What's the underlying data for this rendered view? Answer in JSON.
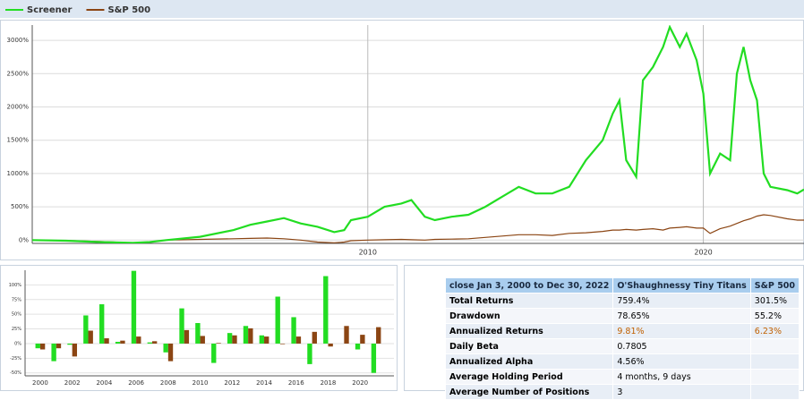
{
  "chart_data": [
    {
      "type": "line",
      "x": [
        2000,
        2001,
        2002,
        2003,
        2003.5,
        2004,
        2005,
        2006,
        2006.5,
        2007,
        2007.5,
        2008,
        2008.5,
        2009,
        2009.3,
        2009.5,
        2010,
        2010.5,
        2011,
        2011.3,
        2011.7,
        2012,
        2012.5,
        2013,
        2013.5,
        2014,
        2014.5,
        2015,
        2015.5,
        2016,
        2016.5,
        2017,
        2017.3,
        2017.5,
        2017.7,
        2018,
        2018.2,
        2018.5,
        2018.8,
        2019,
        2019.3,
        2019.5,
        2019.8,
        2020,
        2020.2,
        2020.5,
        2020.8,
        2021,
        2021.2,
        2021.4,
        2021.6,
        2021.8,
        2022,
        2022.5,
        2022.8,
        2023
      ],
      "series": [
        {
          "name": "Screener",
          "color": "#22dd22",
          "values": [
            0,
            -10,
            -30,
            -40,
            -30,
            0,
            50,
            150,
            230,
            280,
            330,
            250,
            200,
            120,
            150,
            300,
            350,
            500,
            550,
            600,
            350,
            300,
            350,
            380,
            500,
            650,
            800,
            700,
            700,
            800,
            1200,
            1500,
            1900,
            2100,
            1200,
            950,
            2400,
            2600,
            2900,
            3200,
            2900,
            3100,
            2700,
            2200,
            1000,
            1300,
            1200,
            2500,
            2900,
            2400,
            2100,
            1000,
            800,
            750,
            700,
            760
          ]
        },
        {
          "name": "S&P 500",
          "color": "#8b4513",
          "values": [
            0,
            -5,
            -20,
            -40,
            -30,
            0,
            10,
            20,
            25,
            30,
            20,
            0,
            -30,
            -40,
            -30,
            -10,
            0,
            5,
            10,
            5,
            0,
            10,
            15,
            20,
            40,
            60,
            80,
            80,
            70,
            100,
            110,
            130,
            150,
            150,
            160,
            150,
            160,
            170,
            150,
            180,
            190,
            200,
            180,
            180,
            100,
            170,
            210,
            250,
            290,
            320,
            360,
            380,
            370,
            320,
            300,
            300
          ]
        }
      ],
      "xlim": [
        2000,
        2023
      ],
      "xticks": [
        2010,
        2020
      ],
      "ylim": [
        -50,
        3230
      ],
      "yticks": [
        {
          "value": 0,
          "label": "0%"
        },
        {
          "value": 500,
          "label": "500%"
        },
        {
          "value": 1000,
          "label": "1000%"
        },
        {
          "value": 1500,
          "label": "1500%"
        },
        {
          "value": 2000,
          "label": "2000%"
        },
        {
          "value": 2500,
          "label": "2500%"
        },
        {
          "value": 3000,
          "label": "3000%"
        }
      ],
      "grid": true,
      "legend": "top-left"
    },
    {
      "type": "bar",
      "categories": [
        "2000",
        null,
        "2002",
        null,
        "2004",
        null,
        "2006",
        null,
        "2008",
        null,
        "2010",
        null,
        "2012",
        null,
        "2014",
        null,
        "2016",
        null,
        "2018",
        null,
        "2020",
        null
      ],
      "series": [
        {
          "color": "#22dd22",
          "values": [
            -8,
            -30,
            -2,
            48,
            67,
            3,
            124,
            2,
            -15,
            60,
            35,
            -33,
            18,
            30,
            14,
            80,
            45,
            -35,
            115,
            0,
            -10,
            -50
          ]
        },
        {
          "color": "#8b4513",
          "values": [
            -10,
            -8,
            -22,
            22,
            9,
            5,
            12,
            4,
            -30,
            23,
            13,
            1,
            14,
            26,
            12,
            -1,
            12,
            20,
            -5,
            30,
            15,
            28
          ]
        }
      ],
      "ylim": [
        -55,
        125
      ],
      "yticks": [
        {
          "value": -50,
          "label": "-50%"
        },
        {
          "value": -25,
          "label": "-25%"
        },
        {
          "value": 0,
          "label": "0%"
        },
        {
          "value": 25,
          "label": "25%"
        },
        {
          "value": 50,
          "label": "50%"
        },
        {
          "value": 75,
          "label": "75%"
        },
        {
          "value": 100,
          "label": "100%"
        }
      ],
      "grid": true
    }
  ],
  "table": {
    "header": [
      "close Jan 3, 2000 to Dec 30, 2022",
      "O'Shaughnessy Tiny Titans",
      "S&P 500"
    ],
    "rows": [
      [
        "Total Returns",
        "759.4%",
        "301.5%"
      ],
      [
        "Drawdown",
        "78.65%",
        "55.2%"
      ],
      [
        "Annualized Returns",
        "9.81%",
        "6.23%"
      ],
      [
        "Daily Beta",
        "0.7805",
        null
      ],
      [
        "Annualized Alpha",
        "4.56%",
        null
      ],
      [
        "Average Holding Period",
        "4 months, 9 days",
        null
      ],
      [
        "Average Number of Positions",
        "3",
        null
      ]
    ]
  }
}
